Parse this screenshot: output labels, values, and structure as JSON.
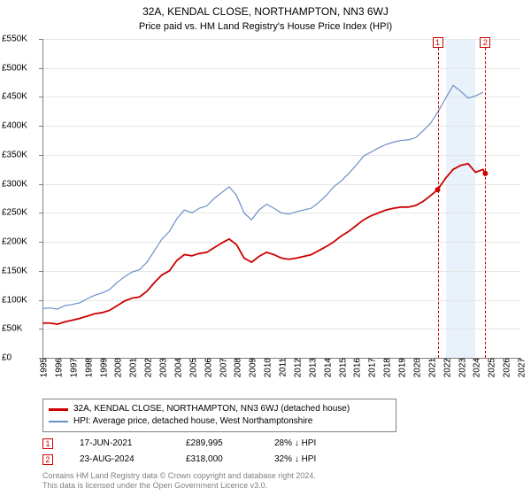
{
  "title": "32A, KENDAL CLOSE, NORTHAMPTON, NN3 6WJ",
  "subtitle": "Price paid vs. HM Land Registry's House Price Index (HPI)",
  "chart": {
    "type": "line",
    "xlim": [
      1995,
      2027
    ],
    "ylim": [
      0,
      550000
    ],
    "ytick_step": 50000,
    "ytick_labels": [
      "£0",
      "£50K",
      "£100K",
      "£150K",
      "£200K",
      "£250K",
      "£300K",
      "£350K",
      "£400K",
      "£450K",
      "£500K",
      "£550K"
    ],
    "xtick_step": 1,
    "xtick_labels": [
      "1995",
      "1996",
      "1997",
      "1998",
      "1999",
      "2000",
      "2001",
      "2002",
      "2003",
      "2004",
      "2005",
      "2006",
      "2007",
      "2008",
      "2009",
      "2010",
      "2011",
      "2012",
      "2013",
      "2014",
      "2015",
      "2016",
      "2017",
      "2018",
      "2019",
      "2020",
      "2021",
      "2022",
      "2023",
      "2024",
      "2025",
      "2026",
      "2027"
    ],
    "gridline_color": "#e6e6e6",
    "axis_color": "#808080",
    "background_color": "#ffffff",
    "highlight_band": {
      "start": 2022.0,
      "end": 2024.0,
      "color": "#e9f1fb"
    },
    "markers": [
      {
        "label": "1",
        "x": 2021.46,
        "color": "#cc0000"
      },
      {
        "label": "2",
        "x": 2024.65,
        "color": "#cc0000"
      }
    ],
    "series": [
      {
        "name": "hpi",
        "color": "#6a8fc7",
        "width": 1.2,
        "points": [
          [
            1995.0,
            85000
          ],
          [
            1995.5,
            86000
          ],
          [
            1996.0,
            84000
          ],
          [
            1996.5,
            90000
          ],
          [
            1997.0,
            92000
          ],
          [
            1997.5,
            95000
          ],
          [
            1998.0,
            102000
          ],
          [
            1998.5,
            108000
          ],
          [
            1999.0,
            112000
          ],
          [
            1999.5,
            118000
          ],
          [
            2000.0,
            130000
          ],
          [
            2000.5,
            140000
          ],
          [
            2001.0,
            148000
          ],
          [
            2001.5,
            152000
          ],
          [
            2002.0,
            165000
          ],
          [
            2002.5,
            185000
          ],
          [
            2003.0,
            205000
          ],
          [
            2003.5,
            218000
          ],
          [
            2004.0,
            240000
          ],
          [
            2004.5,
            255000
          ],
          [
            2005.0,
            250000
          ],
          [
            2005.5,
            258000
          ],
          [
            2006.0,
            262000
          ],
          [
            2006.5,
            275000
          ],
          [
            2007.0,
            285000
          ],
          [
            2007.5,
            295000
          ],
          [
            2008.0,
            280000
          ],
          [
            2008.5,
            250000
          ],
          [
            2009.0,
            238000
          ],
          [
            2009.5,
            255000
          ],
          [
            2010.0,
            265000
          ],
          [
            2010.5,
            258000
          ],
          [
            2011.0,
            250000
          ],
          [
            2011.5,
            248000
          ],
          [
            2012.0,
            252000
          ],
          [
            2012.5,
            255000
          ],
          [
            2013.0,
            258000
          ],
          [
            2013.5,
            268000
          ],
          [
            2014.0,
            280000
          ],
          [
            2014.5,
            295000
          ],
          [
            2015.0,
            305000
          ],
          [
            2015.5,
            318000
          ],
          [
            2016.0,
            332000
          ],
          [
            2016.5,
            348000
          ],
          [
            2017.0,
            355000
          ],
          [
            2017.5,
            362000
          ],
          [
            2018.0,
            368000
          ],
          [
            2018.5,
            372000
          ],
          [
            2019.0,
            375000
          ],
          [
            2019.5,
            376000
          ],
          [
            2020.0,
            380000
          ],
          [
            2020.5,
            392000
          ],
          [
            2021.0,
            405000
          ],
          [
            2021.5,
            425000
          ],
          [
            2022.0,
            448000
          ],
          [
            2022.5,
            470000
          ],
          [
            2023.0,
            460000
          ],
          [
            2023.5,
            448000
          ],
          [
            2024.0,
            452000
          ],
          [
            2024.5,
            458000
          ]
        ]
      },
      {
        "name": "property",
        "color": "#cc0000",
        "width": 1.8,
        "points": [
          [
            1995.0,
            60000
          ],
          [
            1995.5,
            60000
          ],
          [
            1996.0,
            58000
          ],
          [
            1996.5,
            62000
          ],
          [
            1997.0,
            65000
          ],
          [
            1997.5,
            68000
          ],
          [
            1998.0,
            72000
          ],
          [
            1998.5,
            76000
          ],
          [
            1999.0,
            78000
          ],
          [
            1999.5,
            82000
          ],
          [
            2000.0,
            90000
          ],
          [
            2000.5,
            98000
          ],
          [
            2001.0,
            103000
          ],
          [
            2001.5,
            105000
          ],
          [
            2002.0,
            115000
          ],
          [
            2002.5,
            130000
          ],
          [
            2003.0,
            143000
          ],
          [
            2003.5,
            150000
          ],
          [
            2004.0,
            168000
          ],
          [
            2004.5,
            178000
          ],
          [
            2005.0,
            176000
          ],
          [
            2005.5,
            180000
          ],
          [
            2006.0,
            182000
          ],
          [
            2006.5,
            190000
          ],
          [
            2007.0,
            198000
          ],
          [
            2007.5,
            205000
          ],
          [
            2008.0,
            195000
          ],
          [
            2008.5,
            172000
          ],
          [
            2009.0,
            165000
          ],
          [
            2009.5,
            175000
          ],
          [
            2010.0,
            182000
          ],
          [
            2010.5,
            178000
          ],
          [
            2011.0,
            172000
          ],
          [
            2011.5,
            170000
          ],
          [
            2012.0,
            172000
          ],
          [
            2012.5,
            175000
          ],
          [
            2013.0,
            178000
          ],
          [
            2013.5,
            185000
          ],
          [
            2014.0,
            192000
          ],
          [
            2014.5,
            200000
          ],
          [
            2015.0,
            210000
          ],
          [
            2015.5,
            218000
          ],
          [
            2016.0,
            228000
          ],
          [
            2016.5,
            238000
          ],
          [
            2017.0,
            245000
          ],
          [
            2017.5,
            250000
          ],
          [
            2018.0,
            255000
          ],
          [
            2018.5,
            258000
          ],
          [
            2019.0,
            260000
          ],
          [
            2019.5,
            260000
          ],
          [
            2020.0,
            263000
          ],
          [
            2020.5,
            270000
          ],
          [
            2021.0,
            280000
          ],
          [
            2021.46,
            289995
          ],
          [
            2022.0,
            310000
          ],
          [
            2022.5,
            325000
          ],
          [
            2023.0,
            332000
          ],
          [
            2023.5,
            335000
          ],
          [
            2024.0,
            320000
          ],
          [
            2024.5,
            325000
          ],
          [
            2024.65,
            318000
          ]
        ],
        "dots": [
          {
            "x": 2021.46,
            "y": 289995
          },
          {
            "x": 2024.65,
            "y": 318000
          }
        ]
      }
    ]
  },
  "legend": {
    "items": [
      {
        "color": "#cc0000",
        "thick": true,
        "label": "32A, KENDAL CLOSE, NORTHAMPTON, NN3 6WJ (detached house)"
      },
      {
        "color": "#6a8fc7",
        "thick": false,
        "label": "HPI: Average price, detached house, West Northamptonshire"
      }
    ]
  },
  "transactions": [
    {
      "marker": "1",
      "marker_color": "#cc0000",
      "date": "17-JUN-2021",
      "price": "£289,995",
      "pct": "28% ↓ HPI"
    },
    {
      "marker": "2",
      "marker_color": "#cc0000",
      "date": "23-AUG-2024",
      "price": "£318,000",
      "pct": "32% ↓ HPI"
    }
  ],
  "attribution": {
    "line1": "Contains HM Land Registry data © Crown copyright and database right 2024.",
    "line2": "This data is licensed under the Open Government Licence v3.0."
  }
}
